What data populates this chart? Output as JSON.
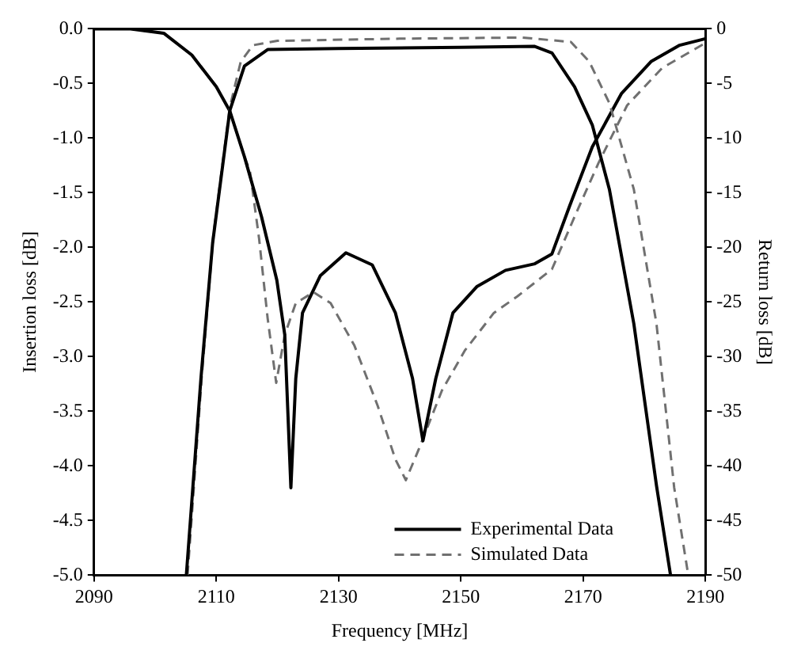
{
  "chart_data": {
    "type": "line",
    "xlabel": "Frequency [MHz]",
    "ylabel": "Insertion loss [dB]",
    "y2label": "Return loss [dB]",
    "xlim": [
      2090,
      2190
    ],
    "xticks": [
      2090,
      2110,
      2130,
      2150,
      2170,
      2190
    ],
    "ylim": [
      -5,
      0
    ],
    "yticks": [
      {
        "value": -5,
        "label": "-5.0"
      },
      {
        "value": -4.5,
        "label": "-4.5"
      },
      {
        "value": -4,
        "label": "-4.0"
      },
      {
        "value": -3.5,
        "label": "-3.5"
      },
      {
        "value": -3,
        "label": "-3.0"
      },
      {
        "value": -2.5,
        "label": "-2.5"
      },
      {
        "value": -2,
        "label": "-2.0"
      },
      {
        "value": -1.5,
        "label": "-1.5"
      },
      {
        "value": -1,
        "label": "-1.0"
      },
      {
        "value": -0.5,
        "label": "-0.5"
      },
      {
        "value": 0,
        "label": "0.0"
      }
    ],
    "y2lim": [
      -50,
      0
    ],
    "y2ticks": [
      -50,
      -45,
      -40,
      -35,
      -30,
      -25,
      -20,
      -15,
      -10,
      -5,
      0
    ],
    "grid": false,
    "legend": "bottom right",
    "marker": "none",
    "series": [
      {
        "name": "Experimental Data",
        "color": "#000000",
        "line_style": "solid",
        "x": [
          2105.1,
          2107.5,
          2109.4,
          2112.2,
          2114.6,
          2118.4,
          2130,
          2150,
          2162,
          2164.9,
          2168.6,
          2171.5,
          2174.3,
          2178.3,
          2182,
          2184.3
        ],
        "values": [
          -5,
          -3.19,
          -1.96,
          -0.75,
          -0.34,
          -0.19,
          -0.18,
          -0.17,
          -0.16,
          -0.22,
          -0.53,
          -0.88,
          -1.47,
          -2.7,
          -4.18,
          -5
        ]
      },
      {
        "name": "Simulated Data",
        "color": "#707070",
        "line_style": "dashed",
        "x": [
          2105.3,
          2107.6,
          2109.5,
          2112.2,
          2114,
          2116,
          2120,
          2140,
          2160,
          2168,
          2171,
          2174.3,
          2178.3,
          2182,
          2184.9,
          2187.2
        ],
        "values": [
          -5,
          -3.2,
          -1.9,
          -0.72,
          -0.3,
          -0.15,
          -0.11,
          -0.09,
          -0.08,
          -0.12,
          -0.3,
          -0.68,
          -1.47,
          -2.7,
          -4.2,
          -5
        ]
      },
      {
        "color": "#000000",
        "line_style": "solid",
        "axis": "y2",
        "x": [
          2090,
          2096,
          2101.4,
          2106,
          2110,
          2112.2,
          2114.6,
          2117.4,
          2119.9,
          2121.2,
          2122.2,
          2123,
          2124.1,
          2127,
          2131.2,
          2135.5,
          2139.3,
          2142.1,
          2143.8,
          2145.9,
          2148.7,
          2152.6,
          2157.3,
          2162.1,
          2164.9,
          2167.8,
          2171.5,
          2176.3,
          2181.1,
          2185.8,
          2190
        ],
        "values": [
          0,
          0,
          -0.4,
          -2.4,
          -5.3,
          -7.5,
          -11.7,
          -17.2,
          -23,
          -28,
          -42,
          -32,
          -26,
          -22.6,
          -20.5,
          -21.6,
          -26,
          -32,
          -37.7,
          -32,
          -26,
          -23.6,
          -22.1,
          -21.5,
          -20.6,
          -16.2,
          -10.8,
          -5.9,
          -3,
          -1.5,
          -0.9
        ]
      },
      {
        "color": "#707070",
        "line_style": "dashed",
        "axis": "y2",
        "x": [
          2090,
          2096,
          2101.4,
          2106,
          2110,
          2112.2,
          2114.6,
          2115.5,
          2117,
          2118.4,
          2119.8,
          2121.2,
          2123,
          2125.9,
          2128.7,
          2132.6,
          2136.4,
          2139.3,
          2141,
          2143.1,
          2146.9,
          2150.7,
          2155.4,
          2159.2,
          2164.9,
          2168.6,
          2172.5,
          2177.2,
          2182.9,
          2190
        ],
        "values": [
          0,
          0,
          -0.4,
          -2.4,
          -5.3,
          -7.5,
          -11.7,
          -13,
          -19.2,
          -26.5,
          -32.4,
          -28,
          -25.1,
          -24.1,
          -25.1,
          -29,
          -34.5,
          -39.4,
          -41.3,
          -38.5,
          -33.1,
          -29.4,
          -26,
          -24.5,
          -22,
          -17.2,
          -12.3,
          -7,
          -3.6,
          -1.3
        ]
      }
    ]
  }
}
